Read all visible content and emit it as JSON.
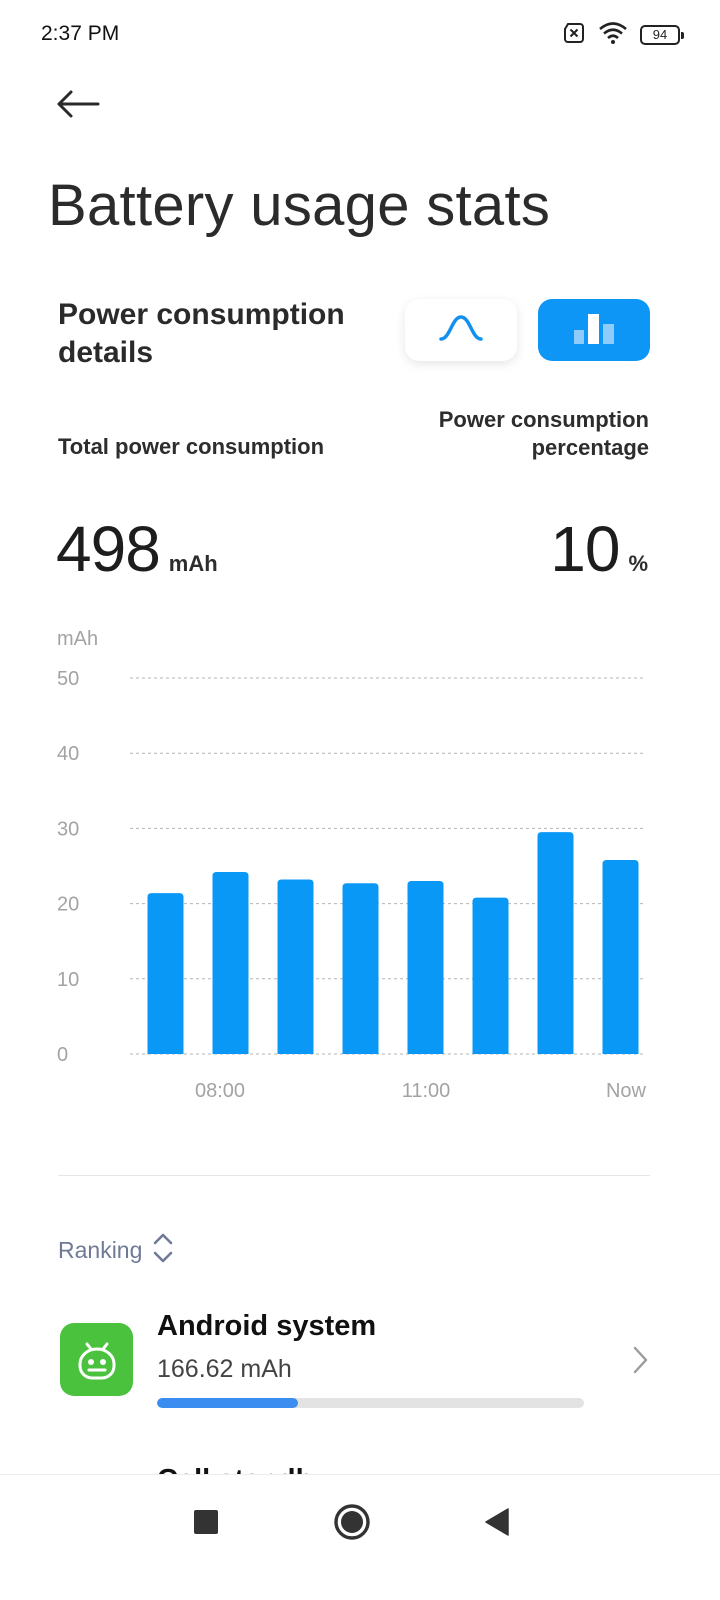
{
  "status_bar": {
    "time": "2:37 PM",
    "battery_level": "94",
    "icons": [
      "sim-error-icon",
      "wifi-icon",
      "battery-icon"
    ]
  },
  "header": {
    "title": "Battery usage stats",
    "back_icon": "back-arrow-icon"
  },
  "details": {
    "title": "Power consumption details",
    "view_toggle": {
      "selected": "bar",
      "options": [
        "curve-chart-icon",
        "bar-chart-icon"
      ]
    },
    "total_label": "Total power consumption",
    "total_value": "498",
    "total_unit": "mAh",
    "percentage_label": "Power consumption percentage",
    "percentage_value": "10",
    "percentage_unit": "%"
  },
  "chart_data": {
    "type": "bar",
    "ylabel": "mAh",
    "ylim": [
      0,
      50
    ],
    "yticks": [
      "50",
      "40",
      "30",
      "20",
      "10",
      "0"
    ],
    "x_tick_labels": [
      "08:00",
      "11:00",
      "Now"
    ],
    "values": [
      21.4,
      24.2,
      23.2,
      22.7,
      23.0,
      20.8,
      29.5,
      25.8
    ],
    "grid": true,
    "color": "#0a98f7"
  },
  "ranking": {
    "label": "Ranking",
    "sort_icon": "sort-updown-icon"
  },
  "apps": [
    {
      "name": "Android system",
      "value": "166.62 mAh",
      "fraction": 0.33,
      "icon": "android-icon",
      "color": "#4bc23e"
    }
  ],
  "next_item_peek": "Cell standby",
  "nav": {
    "icons": [
      "recents-square-icon",
      "home-circle-icon",
      "back-triangle-icon"
    ]
  }
}
